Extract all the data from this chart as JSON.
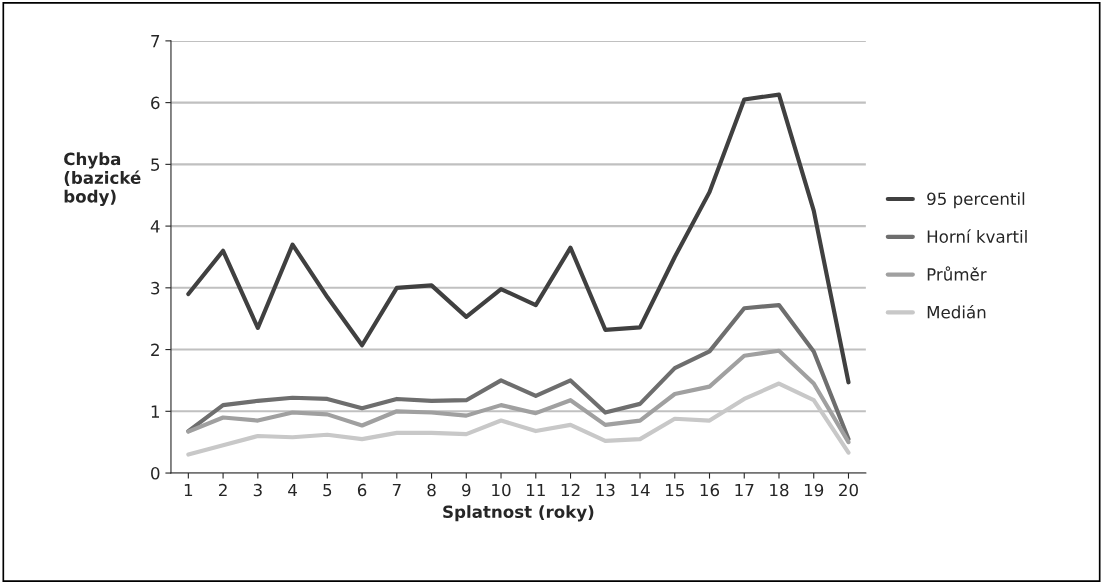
{
  "chart_data": {
    "type": "line",
    "xlabel": "Splatnost (roky)",
    "ylabel": "Chyba\n(bazické\nbody)",
    "categories": [
      "1",
      "2",
      "3",
      "4",
      "5",
      "6",
      "7",
      "8",
      "9",
      "10",
      "11",
      "12",
      "13",
      "14",
      "15",
      "16",
      "17",
      "18",
      "19",
      "20"
    ],
    "series": [
      {
        "name": "95 percentil",
        "color": "#404040",
        "values": [
          2.9,
          3.6,
          2.35,
          3.7,
          2.85,
          2.07,
          3.0,
          3.04,
          2.53,
          2.98,
          2.72,
          3.65,
          2.32,
          2.36,
          3.5,
          4.55,
          6.05,
          6.13,
          4.25,
          1.47
        ]
      },
      {
        "name": "Horní kvartil",
        "color": "#6e6e6e",
        "values": [
          0.68,
          1.1,
          1.17,
          1.22,
          1.2,
          1.05,
          1.2,
          1.17,
          1.18,
          1.5,
          1.25,
          1.5,
          0.98,
          1.12,
          1.7,
          1.97,
          2.67,
          2.72,
          1.97,
          0.55
        ]
      },
      {
        "name": "Průměr",
        "color": "#a0a0a0",
        "values": [
          0.67,
          0.9,
          0.85,
          0.98,
          0.95,
          0.77,
          1.0,
          0.98,
          0.93,
          1.1,
          0.97,
          1.18,
          0.78,
          0.85,
          1.28,
          1.4,
          1.9,
          1.98,
          1.45,
          0.5
        ]
      },
      {
        "name": "Medián",
        "color": "#c8c8c8",
        "values": [
          0.3,
          0.45,
          0.6,
          0.58,
          0.62,
          0.55,
          0.65,
          0.65,
          0.63,
          0.85,
          0.68,
          0.78,
          0.52,
          0.55,
          0.88,
          0.85,
          1.2,
          1.45,
          1.18,
          0.33
        ]
      }
    ],
    "ylim": [
      0,
      7
    ],
    "yticks": [
      0,
      1,
      2,
      3,
      4,
      5,
      6,
      7
    ],
    "grid": "y",
    "legend": "right"
  }
}
